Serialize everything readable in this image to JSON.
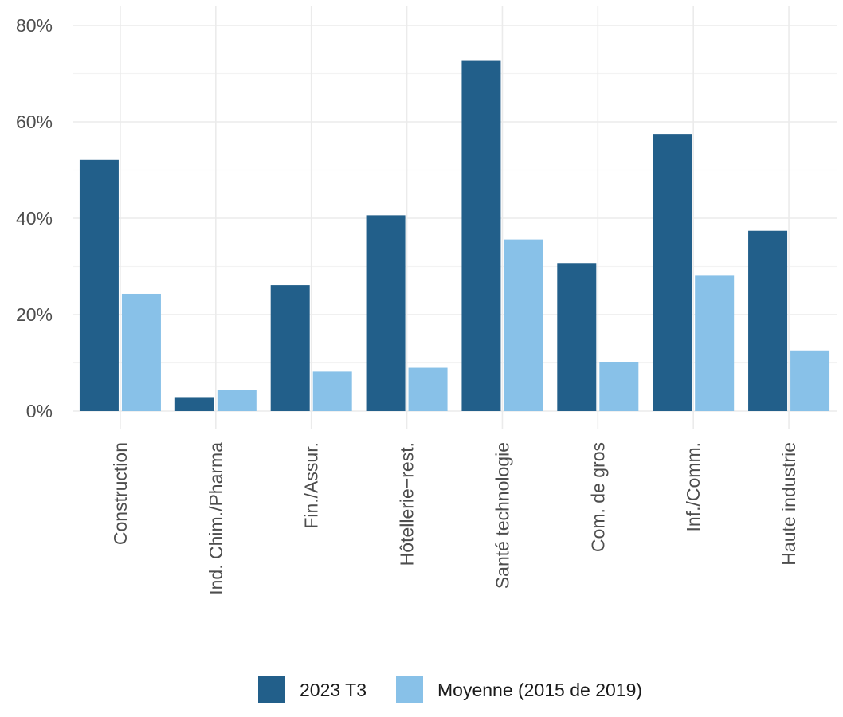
{
  "chart_data": {
    "type": "bar",
    "categories": [
      "Construction",
      "Ind. Chim./Pharma",
      "Fin./Assur.",
      "Hôtellerie−rest.",
      "Santé technologie",
      "Com. de gros",
      "Inf./Comm.",
      "Haute industrie"
    ],
    "series": [
      {
        "name": "2023 T3",
        "color": "#225f8a",
        "values": [
          52.1,
          2.9,
          26.1,
          40.6,
          72.8,
          30.7,
          57.5,
          37.4
        ]
      },
      {
        "name": "Moyenne (2015 de 2019)",
        "color": "#88c1e8",
        "values": [
          24.3,
          4.4,
          8.2,
          9.0,
          35.6,
          10.1,
          28.2,
          12.6
        ]
      }
    ],
    "ylim": [
      0,
      80
    ],
    "yticks": [
      0,
      20,
      40,
      60,
      80
    ],
    "ytick_labels": [
      "0%",
      "20%",
      "40%",
      "60%",
      "80%"
    ],
    "xlabel": "",
    "ylabel": "",
    "grid": true,
    "legend_position": "bottom"
  }
}
